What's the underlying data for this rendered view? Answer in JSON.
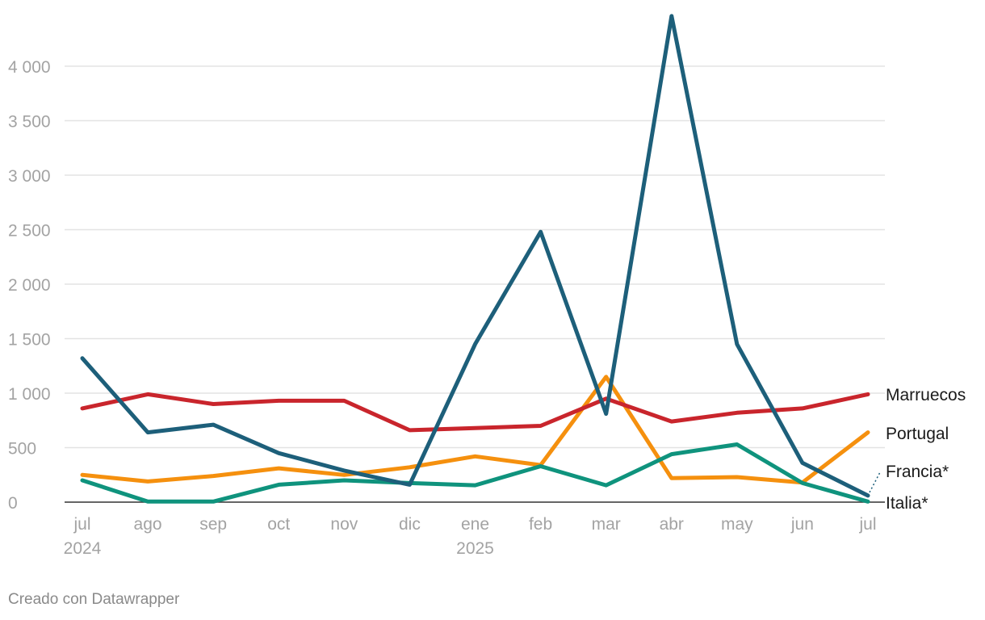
{
  "chart_data": {
    "type": "line",
    "x": [
      "jul",
      "ago",
      "sep",
      "oct",
      "nov",
      "dic",
      "ene",
      "feb",
      "mar",
      "abr",
      "may",
      "jun",
      "jul"
    ],
    "x_secondary": [
      "2024",
      "",
      "",
      "",
      "",
      "",
      "2025",
      "",
      "",
      "",
      "",
      "",
      ""
    ],
    "yticks": [
      "0",
      "500",
      "1 000",
      "1 500",
      "2 000",
      "2 500",
      "3 000",
      "3 500",
      "4 000"
    ],
    "ytick_values": [
      0,
      500,
      1000,
      1500,
      2000,
      2500,
      3000,
      3500,
      4000
    ],
    "ylim": [
      0,
      4500
    ],
    "grid": true,
    "legend": "direct labels at right end of lines",
    "series": [
      {
        "name": "Francia*",
        "color": "#1d5f7a",
        "values": [
          1320,
          640,
          710,
          450,
          290,
          160,
          1450,
          2480,
          810,
          4460,
          1450,
          360,
          60
        ]
      },
      {
        "name": "Marruecos",
        "color": "#c9252c",
        "values": [
          860,
          990,
          900,
          930,
          930,
          660,
          680,
          700,
          950,
          740,
          820,
          860,
          990
        ]
      },
      {
        "name": "Portugal",
        "color": "#f5900e",
        "values": [
          250,
          190,
          240,
          310,
          250,
          320,
          420,
          340,
          1150,
          220,
          230,
          180,
          640
        ]
      },
      {
        "name": "Italia*",
        "color": "#0f937d",
        "values": [
          200,
          5,
          5,
          160,
          200,
          175,
          155,
          330,
          155,
          440,
          530,
          175,
          5
        ]
      }
    ]
  },
  "footer": {
    "credit": "Creado con Datawrapper"
  }
}
